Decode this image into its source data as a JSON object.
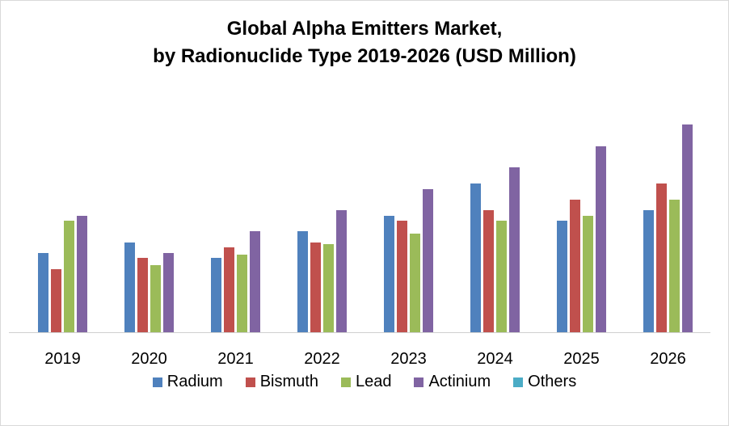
{
  "chart_data": {
    "type": "bar",
    "title_line1": "Global Alpha Emitters Market,",
    "title_line2": "by Radionuclide Type 2019-2026 (USD Million)",
    "categories": [
      "2019",
      "2020",
      "2021",
      "2022",
      "2023",
      "2024",
      "2025",
      "2026"
    ],
    "series": [
      {
        "name": "Radium",
        "color": "#4f81bd",
        "values": [
          98,
          111,
          92,
          125,
          144,
          184,
          138,
          151
        ]
      },
      {
        "name": "Bismuth",
        "color": "#c0504d",
        "values": [
          78,
          92,
          105,
          111,
          138,
          151,
          164,
          184
        ]
      },
      {
        "name": "Lead",
        "color": "#9bbb59",
        "values": [
          138,
          83,
          96,
          109,
          122,
          138,
          144,
          164
        ]
      },
      {
        "name": "Actinium",
        "color": "#8064a2",
        "values": [
          144,
          98,
          125,
          151,
          177,
          204,
          230,
          257
        ]
      },
      {
        "name": "Others",
        "color": "#4bacc6",
        "values": [
          0,
          0,
          0,
          0,
          0,
          0,
          0,
          0
        ]
      }
    ],
    "ylim": [
      0,
      280
    ],
    "y_axis_shown": false,
    "grid": false,
    "legend": "bottom"
  }
}
